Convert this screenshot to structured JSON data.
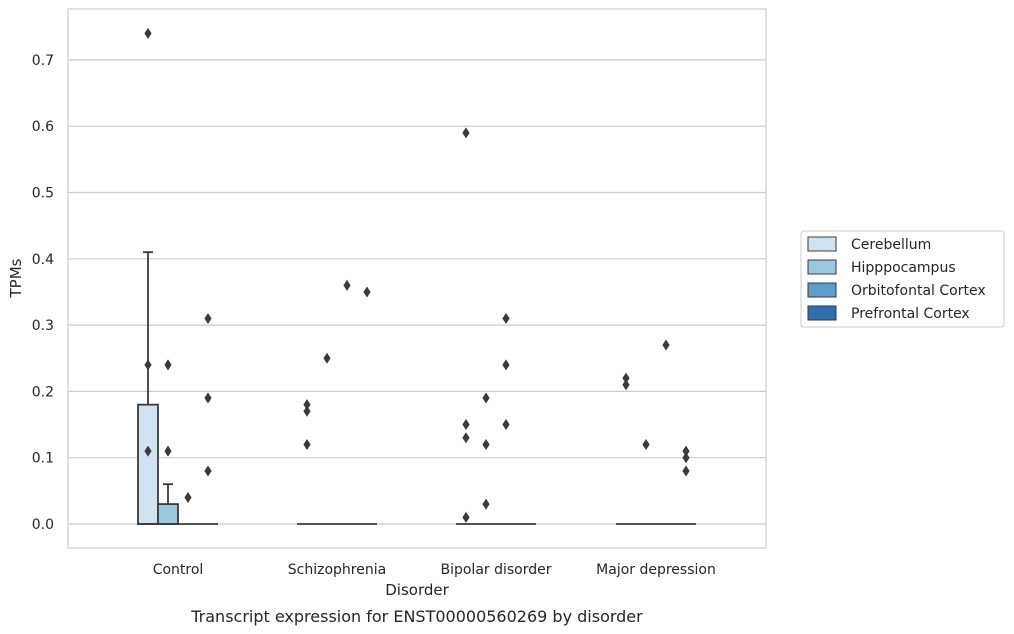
{
  "chart_data": {
    "type": "box",
    "caption": "Transcript expression for ENST00000560269 by disorder",
    "xlabel": "Disorder",
    "ylabel": "TPMs",
    "ylim": [
      -0.035,
      0.775
    ],
    "yticks": [
      "0.0",
      "0.1",
      "0.2",
      "0.3",
      "0.4",
      "0.5",
      "0.6",
      "0.7"
    ],
    "grid": "horizontal",
    "legend_placement": "right",
    "categories": [
      "Control",
      "Schizophrenia",
      "Bipolar disorder",
      "Major depression"
    ],
    "series": [
      {
        "name": "Cerebellum",
        "color": "#d1e2f1",
        "boxes": [
          {
            "category": "Control",
            "q1": 0.0,
            "median": 0.0,
            "q3": 0.18,
            "whisker_low": 0.0,
            "whisker_high": 0.41,
            "outliers": [
              0.74,
              0.24,
              0.11
            ]
          },
          {
            "category": "Schizophrenia",
            "q1": 0.0,
            "median": 0.0,
            "q3": 0.0,
            "whisker_low": 0.0,
            "whisker_high": 0.0,
            "outliers": [
              0.18,
              0.17,
              0.12
            ]
          },
          {
            "category": "Bipolar disorder",
            "q1": 0.0,
            "median": 0.0,
            "q3": 0.0,
            "whisker_low": 0.0,
            "whisker_high": 0.0,
            "outliers": [
              0.59,
              0.15,
              0.13,
              0.01
            ]
          },
          {
            "category": "Major depression",
            "q1": 0.0,
            "median": 0.0,
            "q3": 0.0,
            "whisker_low": 0.0,
            "whisker_high": 0.0,
            "outliers": [
              0.22,
              0.21
            ]
          }
        ]
      },
      {
        "name": "Hipppocampus",
        "color": "#9ac8e0",
        "boxes": [
          {
            "category": "Control",
            "q1": 0.0,
            "median": 0.0,
            "q3": 0.03,
            "whisker_low": 0.0,
            "whisker_high": 0.06,
            "outliers": [
              0.24,
              0.11
            ]
          },
          {
            "category": "Schizophrenia",
            "q1": 0.0,
            "median": 0.0,
            "q3": 0.0,
            "whisker_low": 0.0,
            "whisker_high": 0.0,
            "outliers": [
              0.25
            ]
          },
          {
            "category": "Bipolar disorder",
            "q1": 0.0,
            "median": 0.0,
            "q3": 0.0,
            "whisker_low": 0.0,
            "whisker_high": 0.0,
            "outliers": [
              0.19,
              0.12,
              0.03
            ]
          },
          {
            "category": "Major depression",
            "q1": 0.0,
            "median": 0.0,
            "q3": 0.0,
            "whisker_low": 0.0,
            "whisker_high": 0.0,
            "outliers": [
              0.12
            ]
          }
        ]
      },
      {
        "name": "Orbitofontal Cortex",
        "color": "#5a9ec9",
        "boxes": [
          {
            "category": "Control",
            "q1": 0.0,
            "median": 0.0,
            "q3": 0.0,
            "whisker_low": 0.0,
            "whisker_high": 0.0,
            "outliers": [
              0.04
            ]
          },
          {
            "category": "Schizophrenia",
            "q1": 0.0,
            "median": 0.0,
            "q3": 0.0,
            "whisker_low": 0.0,
            "whisker_high": 0.0,
            "outliers": [
              0.36
            ]
          },
          {
            "category": "Bipolar disorder",
            "q1": 0.0,
            "median": 0.0,
            "q3": 0.0,
            "whisker_low": 0.0,
            "whisker_high": 0.0,
            "outliers": [
              0.31,
              0.24,
              0.15
            ]
          },
          {
            "category": "Major depression",
            "q1": 0.0,
            "median": 0.0,
            "q3": 0.0,
            "whisker_low": 0.0,
            "whisker_high": 0.0,
            "outliers": [
              0.27
            ]
          }
        ]
      },
      {
        "name": "Prefrontal Cortex",
        "color": "#2d6faf",
        "boxes": [
          {
            "category": "Control",
            "q1": 0.0,
            "median": 0.0,
            "q3": 0.0,
            "whisker_low": 0.0,
            "whisker_high": 0.0,
            "outliers": [
              0.31,
              0.19,
              0.08
            ]
          },
          {
            "category": "Schizophrenia",
            "q1": 0.0,
            "median": 0.0,
            "q3": 0.0,
            "whisker_low": 0.0,
            "whisker_high": 0.0,
            "outliers": [
              0.35
            ]
          },
          {
            "category": "Bipolar disorder",
            "q1": 0.0,
            "median": 0.0,
            "q3": 0.0,
            "whisker_low": 0.0,
            "whisker_high": 0.0,
            "outliers": []
          },
          {
            "category": "Major depression",
            "q1": 0.0,
            "median": 0.0,
            "q3": 0.0,
            "whisker_low": 0.0,
            "whisker_high": 0.0,
            "outliers": [
              0.11,
              0.1,
              0.08
            ]
          }
        ]
      }
    ]
  }
}
